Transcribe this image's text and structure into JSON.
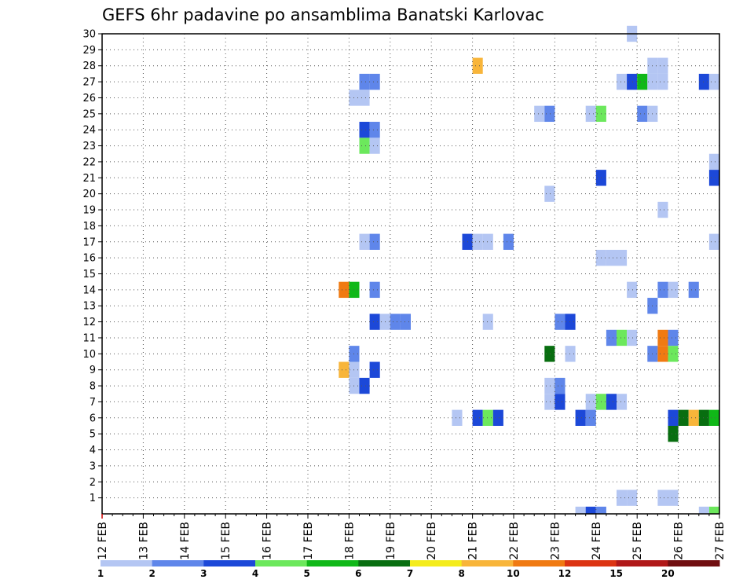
{
  "chart_data": {
    "type": "heatmap",
    "title": "GEFS 6hr padavine po ansamblima Banatski Karlovac",
    "y_axis": {
      "label": "",
      "ticks": [
        1,
        2,
        3,
        4,
        5,
        6,
        7,
        8,
        9,
        10,
        11,
        12,
        13,
        14,
        15,
        16,
        17,
        18,
        19,
        20,
        21,
        22,
        23,
        24,
        25,
        26,
        27,
        28,
        29,
        30
      ],
      "range": [
        0,
        30
      ]
    },
    "x_axis": {
      "label": "",
      "ticks": [
        "12 FEB",
        "13 FEB",
        "14 FEB",
        "15 FEB",
        "16 FEB",
        "17 FEB",
        "18 FEB",
        "19 FEB",
        "20 FEB",
        "21 FEB",
        "22 FEB",
        "23 FEB",
        "24 FEB",
        "25 FEB",
        "26 FEB",
        "27 FEB"
      ],
      "range_days": [
        12,
        27
      ],
      "step": "6hr"
    },
    "grid": "dotted",
    "colorbar": {
      "labels": [
        "1",
        "2",
        "3",
        "4",
        "5",
        "6",
        "7",
        "8",
        "10",
        "12",
        "15",
        "20"
      ],
      "colors": [
        "#b4c6f3",
        "#5f86ea",
        "#1c48d8",
        "#6ce85c",
        "#10b818",
        "#086e10",
        "#f4ec1c",
        "#f8b53a",
        "#f07a12",
        "#dc3412",
        "#b01818",
        "#700e10"
      ]
    },
    "cells": [
      {
        "m": 30,
        "t": "24 FEB 18z",
        "c": 0
      },
      {
        "m": 28,
        "t": "21 FEB 00z",
        "c": 7
      },
      {
        "m": 28,
        "t": "25 FEB 06z",
        "c": 0
      },
      {
        "m": 28,
        "t": "25 FEB 12z",
        "c": 0
      },
      {
        "m": 27,
        "t": "18 FEB 06z",
        "c": 1
      },
      {
        "m": 27,
        "t": "18 FEB 12z",
        "c": 1
      },
      {
        "m": 27,
        "t": "24 FEB 12z",
        "c": 0
      },
      {
        "m": 27,
        "t": "24 FEB 18z",
        "c": 2
      },
      {
        "m": 27,
        "t": "25 FEB 00z",
        "c": 4
      },
      {
        "m": 27,
        "t": "25 FEB 06z",
        "c": 0
      },
      {
        "m": 27,
        "t": "25 FEB 12z",
        "c": 0
      },
      {
        "m": 27,
        "t": "26 FEB 12z",
        "c": 2
      },
      {
        "m": 27,
        "t": "26 FEB 18z",
        "c": 0
      },
      {
        "m": 26,
        "t": "18 FEB 00z",
        "c": 0
      },
      {
        "m": 26,
        "t": "18 FEB 06z",
        "c": 0
      },
      {
        "m": 25,
        "t": "22 FEB 12z",
        "c": 0
      },
      {
        "m": 25,
        "t": "22 FEB 18z",
        "c": 1
      },
      {
        "m": 25,
        "t": "23 FEB 18z",
        "c": 0
      },
      {
        "m": 25,
        "t": "24 FEB 00z",
        "c": 3
      },
      {
        "m": 25,
        "t": "25 FEB 00z",
        "c": 1
      },
      {
        "m": 25,
        "t": "25 FEB 06z",
        "c": 0
      },
      {
        "m": 24,
        "t": "18 FEB 06z",
        "c": 2
      },
      {
        "m": 24,
        "t": "18 FEB 12z",
        "c": 1
      },
      {
        "m": 23,
        "t": "18 FEB 06z",
        "c": 3
      },
      {
        "m": 23,
        "t": "18 FEB 12z",
        "c": 0
      },
      {
        "m": 22,
        "t": "26 FEB 18z",
        "c": 0
      },
      {
        "m": 21,
        "t": "24 FEB 00z",
        "c": 2
      },
      {
        "m": 21,
        "t": "26 FEB 18z",
        "c": 2
      },
      {
        "m": 20,
        "t": "22 FEB 18z",
        "c": 0
      },
      {
        "m": 19,
        "t": "25 FEB 12z",
        "c": 0
      },
      {
        "m": 17,
        "t": "18 FEB 06z",
        "c": 0
      },
      {
        "m": 17,
        "t": "18 FEB 12z",
        "c": 1
      },
      {
        "m": 17,
        "t": "20 FEB 18z",
        "c": 2
      },
      {
        "m": 17,
        "t": "21 FEB 00z",
        "c": 0
      },
      {
        "m": 17,
        "t": "21 FEB 06z",
        "c": 0
      },
      {
        "m": 17,
        "t": "21 FEB 18z",
        "c": 1
      },
      {
        "m": 17,
        "t": "26 FEB 18z",
        "c": 0
      },
      {
        "m": 16,
        "t": "24 FEB 00z",
        "c": 0
      },
      {
        "m": 16,
        "t": "24 FEB 06z",
        "c": 0
      },
      {
        "m": 16,
        "t": "24 FEB 12z",
        "c": 0
      },
      {
        "m": 14,
        "t": "17 FEB 18z",
        "c": 8
      },
      {
        "m": 14,
        "t": "18 FEB 00z",
        "c": 4
      },
      {
        "m": 14,
        "t": "18 FEB 12z",
        "c": 1
      },
      {
        "m": 14,
        "t": "24 FEB 18z",
        "c": 0
      },
      {
        "m": 14,
        "t": "25 FEB 12z",
        "c": 1
      },
      {
        "m": 14,
        "t": "25 FEB 18z",
        "c": 0
      },
      {
        "m": 14,
        "t": "26 FEB 06z",
        "c": 1
      },
      {
        "m": 13,
        "t": "25 FEB 06z",
        "c": 1
      },
      {
        "m": 12,
        "t": "18 FEB 12z",
        "c": 2
      },
      {
        "m": 12,
        "t": "18 FEB 18z",
        "c": 0
      },
      {
        "m": 12,
        "t": "19 FEB 00z",
        "c": 1
      },
      {
        "m": 12,
        "t": "19 FEB 06z",
        "c": 1
      },
      {
        "m": 12,
        "t": "21 FEB 06z",
        "c": 0
      },
      {
        "m": 12,
        "t": "23 FEB 00z",
        "c": 1
      },
      {
        "m": 12,
        "t": "23 FEB 06z",
        "c": 2
      },
      {
        "m": 11,
        "t": "24 FEB 06z",
        "c": 1
      },
      {
        "m": 11,
        "t": "24 FEB 12z",
        "c": 3
      },
      {
        "m": 11,
        "t": "24 FEB 18z",
        "c": 0
      },
      {
        "m": 11,
        "t": "25 FEB 12z",
        "c": 8
      },
      {
        "m": 11,
        "t": "25 FEB 18z",
        "c": 1
      },
      {
        "m": 10,
        "t": "18 FEB 00z",
        "c": 1
      },
      {
        "m": 10,
        "t": "22 FEB 18z",
        "c": 5
      },
      {
        "m": 10,
        "t": "23 FEB 06z",
        "c": 0
      },
      {
        "m": 10,
        "t": "25 FEB 06z",
        "c": 1
      },
      {
        "m": 10,
        "t": "25 FEB 12z",
        "c": 8
      },
      {
        "m": 10,
        "t": "25 FEB 18z",
        "c": 3
      },
      {
        "m": 9,
        "t": "17 FEB 18z",
        "c": 7
      },
      {
        "m": 9,
        "t": "18 FEB 00z",
        "c": 0
      },
      {
        "m": 9,
        "t": "18 FEB 12z",
        "c": 2
      },
      {
        "m": 8,
        "t": "18 FEB 00z",
        "c": 0
      },
      {
        "m": 8,
        "t": "18 FEB 06z",
        "c": 2
      },
      {
        "m": 8,
        "t": "22 FEB 18z",
        "c": 0
      },
      {
        "m": 8,
        "t": "23 FEB 00z",
        "c": 1
      },
      {
        "m": 7,
        "t": "22 FEB 18z",
        "c": 0
      },
      {
        "m": 7,
        "t": "23 FEB 00z",
        "c": 2
      },
      {
        "m": 7,
        "t": "23 FEB 18z",
        "c": 0
      },
      {
        "m": 7,
        "t": "24 FEB 00z",
        "c": 3
      },
      {
        "m": 7,
        "t": "24 FEB 06z",
        "c": 2
      },
      {
        "m": 7,
        "t": "24 FEB 12z",
        "c": 0
      },
      {
        "m": 6,
        "t": "20 FEB 12z",
        "c": 0
      },
      {
        "m": 6,
        "t": "21 FEB 00z",
        "c": 2
      },
      {
        "m": 6,
        "t": "21 FEB 06z",
        "c": 3
      },
      {
        "m": 6,
        "t": "21 FEB 12z",
        "c": 2
      },
      {
        "m": 6,
        "t": "23 FEB 12z",
        "c": 2
      },
      {
        "m": 6,
        "t": "23 FEB 18z",
        "c": 1
      },
      {
        "m": 6,
        "t": "25 FEB 18z",
        "c": 2
      },
      {
        "m": 6,
        "t": "26 FEB 00z",
        "c": 5
      },
      {
        "m": 6,
        "t": "26 FEB 06z",
        "c": 7
      },
      {
        "m": 6,
        "t": "26 FEB 12z",
        "c": 5
      },
      {
        "m": 6,
        "t": "26 FEB 18z",
        "c": 4
      },
      {
        "m": 5,
        "t": "25 FEB 18z",
        "c": 5
      },
      {
        "m": 1,
        "t": "24 FEB 12z",
        "c": 0
      },
      {
        "m": 1,
        "t": "24 FEB 18z",
        "c": 0
      },
      {
        "m": 1,
        "t": "25 FEB 12z",
        "c": 0
      },
      {
        "m": 1,
        "t": "25 FEB 18z",
        "c": 0
      },
      {
        "m": 0,
        "t": "23 FEB 12z",
        "c": 0
      },
      {
        "m": 0,
        "t": "23 FEB 18z",
        "c": 2
      },
      {
        "m": 0,
        "t": "24 FEB 00z",
        "c": 1
      },
      {
        "m": 0,
        "t": "26 FEB 12z",
        "c": 0
      },
      {
        "m": 0,
        "t": "26 FEB 18z",
        "c": 3
      }
    ]
  }
}
